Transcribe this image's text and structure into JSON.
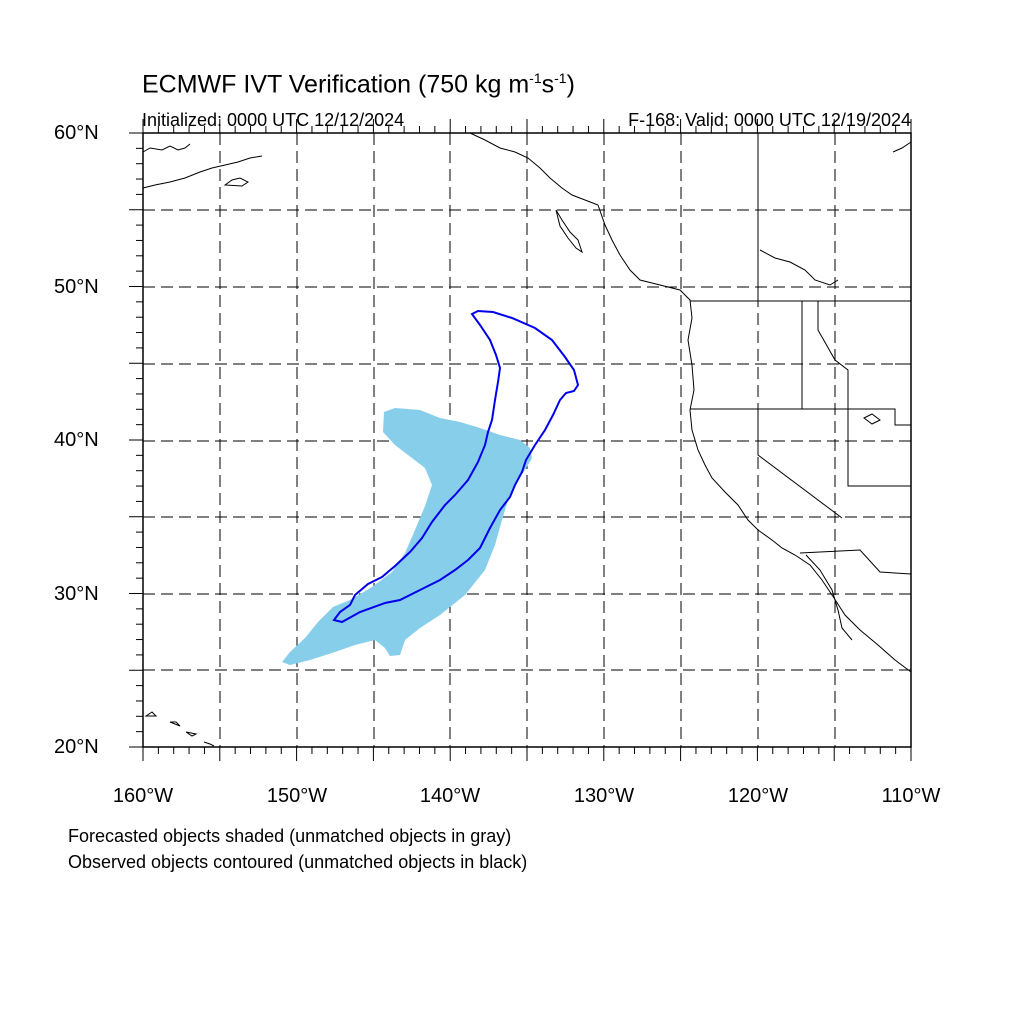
{
  "title": {
    "main": "ECMWF IVT Verification (750 kg m",
    "sup1": "-1",
    "mid": "s",
    "sup2": "-1",
    "end": ")"
  },
  "initialized": "Initialized: 0000 UTC 12/12/2024",
  "valid": "F-168: Valid: 0000 UTC 12/19/2024",
  "axes": {
    "lat_labels": [
      "60°N",
      "50°N",
      "40°N",
      "30°N",
      "20°N"
    ],
    "lon_labels": [
      "160°W",
      "150°W",
      "140°W",
      "130°W",
      "120°W",
      "110°W"
    ],
    "lat_range": [
      20,
      60
    ],
    "lon_range": [
      -160,
      -110
    ]
  },
  "legend": {
    "line1": "Forecasted objects shaded (unmatched objects in gray)",
    "line2": "Observed objects contoured (unmatched objects in black)"
  },
  "colors": {
    "forecast_fill": "#87ceeb",
    "observed_contour": "#0000ee",
    "coastline": "#000000",
    "grid": "#000000"
  }
}
